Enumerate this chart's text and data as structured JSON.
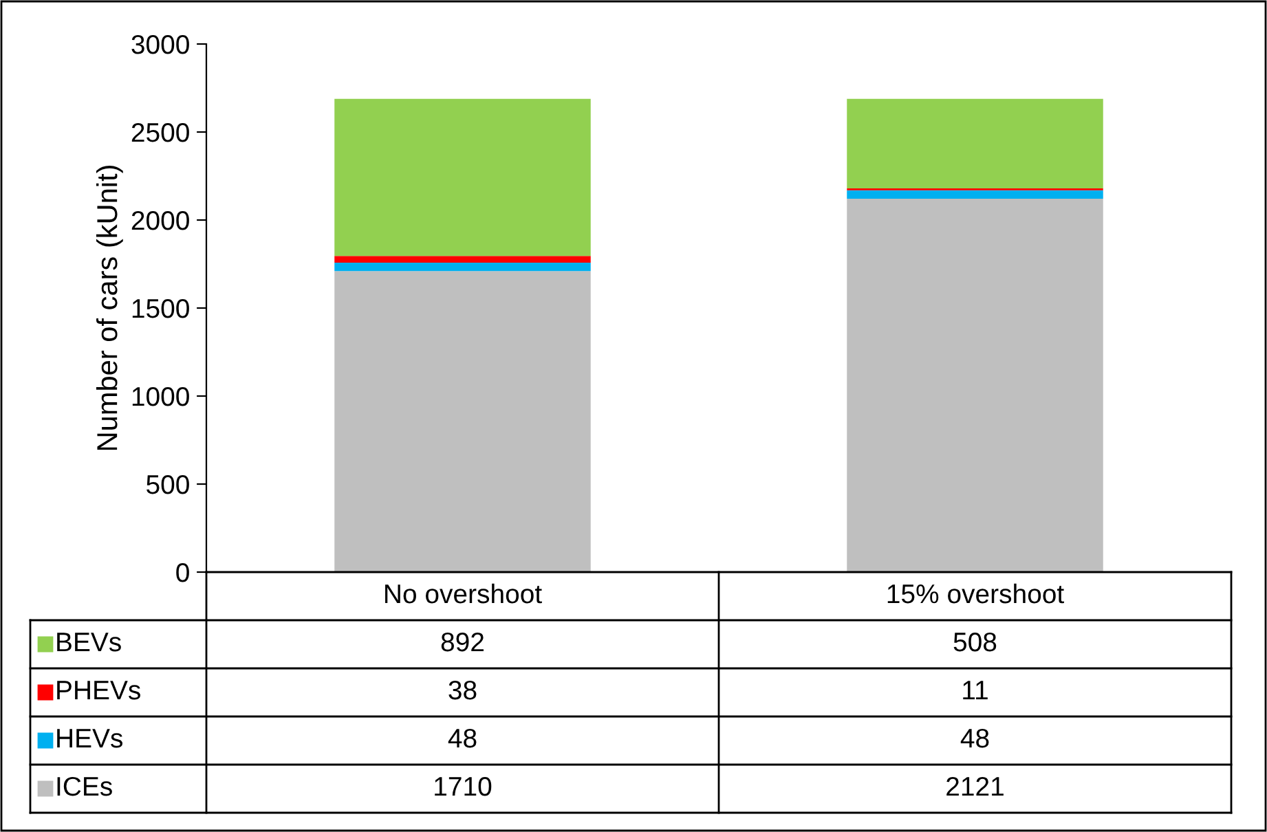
{
  "chart_data": {
    "type": "bar",
    "stacked": true,
    "ylabel": "Number of cars (kUnit)",
    "categories": [
      "No overshoot",
      "15% overshoot"
    ],
    "series": [
      {
        "name": "ICEs",
        "color": "#bfbfbf",
        "values": [
          1710,
          2121
        ]
      },
      {
        "name": "HEVs",
        "color": "#00b0f0",
        "values": [
          48,
          48
        ]
      },
      {
        "name": "PHEVs",
        "color": "#ff0000",
        "values": [
          38,
          11
        ]
      },
      {
        "name": "BEVs",
        "color": "#92d050",
        "values": [
          892,
          508
        ]
      }
    ],
    "ylim": [
      0,
      3000
    ],
    "yticks": [
      0,
      500,
      1000,
      1500,
      2000,
      2500,
      3000
    ],
    "grid": false,
    "legend": "bottom left",
    "data_labels": true
  }
}
